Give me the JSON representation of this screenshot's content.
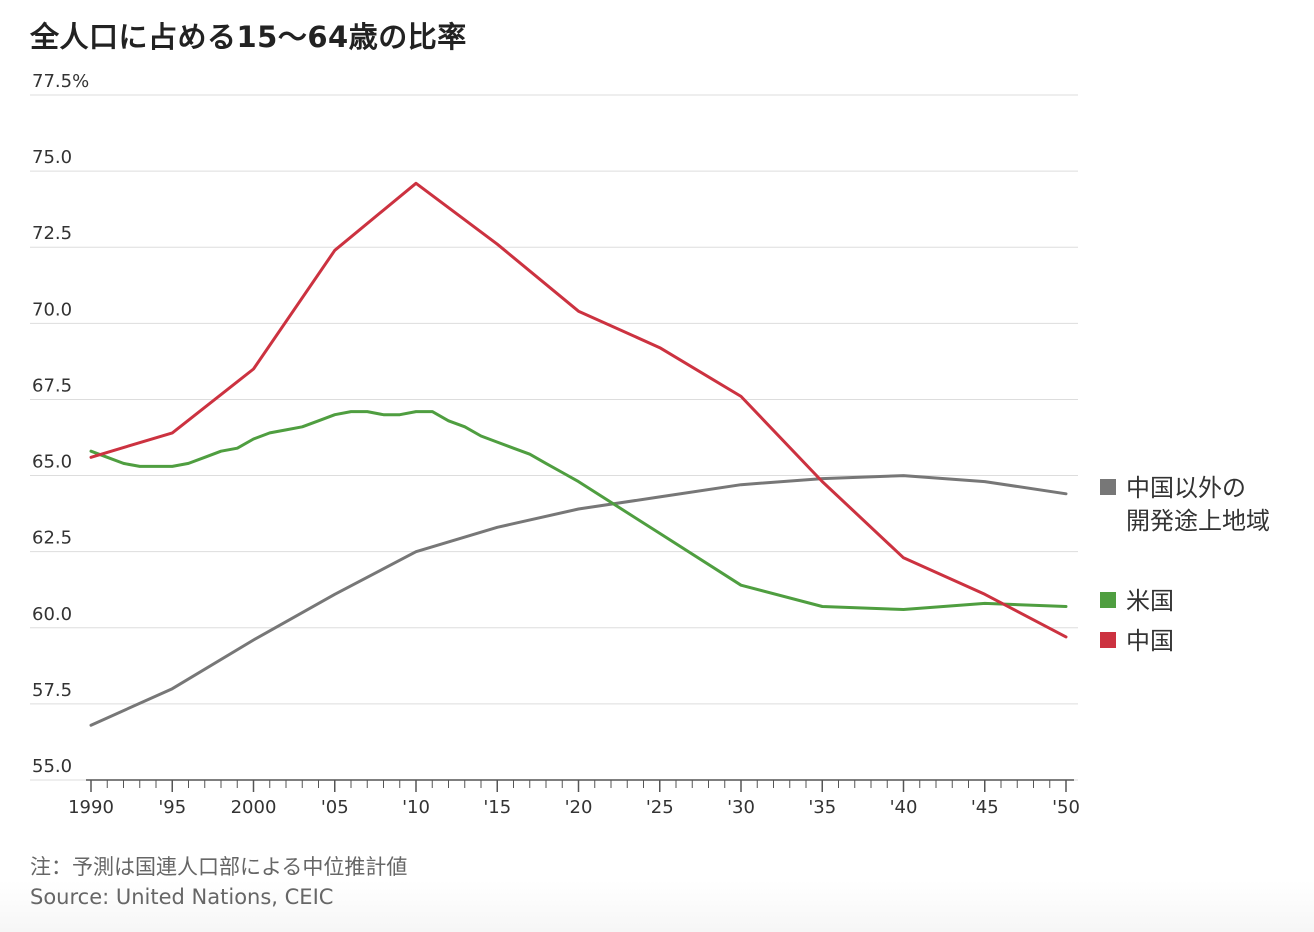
{
  "title": "全人口に占める15〜64歳の比率",
  "note": "注：予測は国連人口部による中位推計値",
  "source": "Source: United Nations, CEIC",
  "chart_data": {
    "type": "line",
    "title": "全人口に占める15〜64歳の比率",
    "xlim": [
      1990,
      2050
    ],
    "ylim": [
      55,
      77.5
    ],
    "y_ticks": [
      55,
      57.5,
      60,
      62.5,
      65,
      67.5,
      70,
      72.5,
      75,
      77.5
    ],
    "y_tick_labels": [
      "55.0",
      "57.5",
      "60.0",
      "62.5",
      "65.0",
      "67.5",
      "70.0",
      "72.5",
      "75.0",
      "77.5%"
    ],
    "x_ticks": [
      1990,
      1995,
      2000,
      2005,
      2010,
      2015,
      2020,
      2025,
      2030,
      2035,
      2040,
      2045,
      2050
    ],
    "x_tick_labels": [
      "1990",
      "'95",
      "2000",
      "'05",
      "'10",
      "'15",
      "'20",
      "'25",
      "'30",
      "'35",
      "'40",
      "'45",
      "'50"
    ],
    "grid": true,
    "legend_position": "right",
    "series": [
      {
        "name": "中国以外の開発途上地域",
        "label_lines": [
          "中国以外の",
          "開発途上地域"
        ],
        "color": "#777777",
        "x": [
          1990,
          1995,
          2000,
          2005,
          2010,
          2015,
          2020,
          2025,
          2030,
          2035,
          2040,
          2045,
          2050
        ],
        "values": [
          56.8,
          58.0,
          59.6,
          61.1,
          62.5,
          63.3,
          63.9,
          64.3,
          64.7,
          64.9,
          65.0,
          64.8,
          64.4
        ]
      },
      {
        "name": "米国",
        "label_lines": [
          "米国"
        ],
        "color": "#4f9e40",
        "x": [
          1990,
          1991,
          1992,
          1993,
          1994,
          1995,
          1996,
          1997,
          1998,
          1999,
          2000,
          2001,
          2002,
          2003,
          2004,
          2005,
          2006,
          2007,
          2008,
          2009,
          2010,
          2011,
          2012,
          2013,
          2014,
          2015,
          2016,
          2017,
          2018,
          2019,
          2020,
          2025,
          2030,
          2035,
          2040,
          2045,
          2050
        ],
        "values": [
          65.8,
          65.6,
          65.4,
          65.3,
          65.3,
          65.3,
          65.4,
          65.6,
          65.8,
          65.9,
          66.2,
          66.4,
          66.5,
          66.6,
          66.8,
          67.0,
          67.1,
          67.1,
          67.0,
          67.0,
          67.1,
          67.1,
          66.8,
          66.6,
          66.3,
          66.1,
          65.9,
          65.7,
          65.4,
          65.1,
          64.8,
          63.1,
          61.4,
          60.7,
          60.6,
          60.8,
          60.7
        ]
      },
      {
        "name": "中国",
        "label_lines": [
          "中国"
        ],
        "color": "#cc3240",
        "x": [
          1990,
          1995,
          2000,
          2005,
          2010,
          2015,
          2020,
          2025,
          2030,
          2035,
          2040,
          2045,
          2050
        ],
        "values": [
          65.6,
          66.4,
          68.5,
          72.4,
          74.6,
          72.6,
          70.4,
          69.2,
          67.6,
          64.8,
          62.3,
          61.1,
          59.7
        ]
      }
    ]
  }
}
